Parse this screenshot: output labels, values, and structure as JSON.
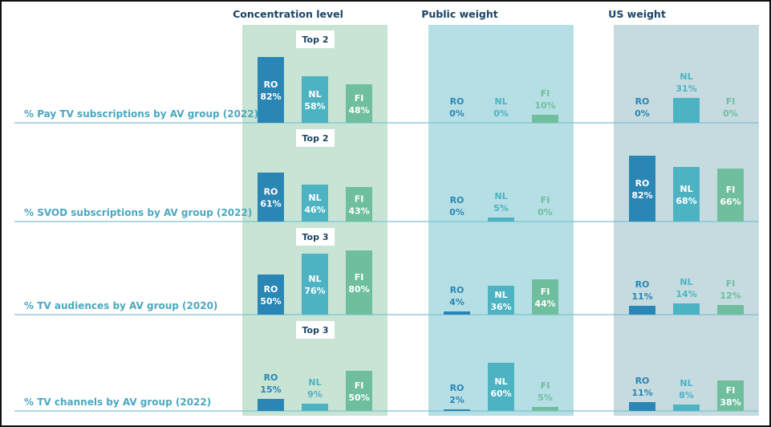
{
  "chart_data": {
    "type": "bar",
    "columns": [
      "Concentration level",
      "Public weight",
      "US weight"
    ],
    "categories": [
      "RO",
      "NL",
      "FI"
    ],
    "colors": {
      "RO": "#2a86b5",
      "NL": "#4db3c3",
      "FI": "#6fbe9e"
    },
    "panel_colors": [
      "#c8e4d4",
      "#b6dfe5",
      "#c5dbe0"
    ],
    "rows": [
      {
        "label": "% Pay TV subscriptions by AV group (2022)",
        "top_label": "Top 2",
        "panels": [
          {
            "values": [
              82,
              58,
              48
            ],
            "texts": [
              "82%",
              "58%",
              "48%"
            ]
          },
          {
            "values": [
              0,
              0,
              10
            ],
            "texts": [
              "0%",
              "0%",
              "10%"
            ]
          },
          {
            "values": [
              0,
              31,
              0
            ],
            "texts": [
              "0%",
              "31%",
              "0%"
            ]
          }
        ]
      },
      {
        "label": "% SVOD subscriptions by AV group (2022)",
        "top_label": "Top 2",
        "panels": [
          {
            "values": [
              61,
              46,
              43
            ],
            "texts": [
              "61%",
              "46%",
              "43%"
            ]
          },
          {
            "values": [
              0,
              5,
              0
            ],
            "texts": [
              "0%",
              "5%",
              "0%"
            ]
          },
          {
            "values": [
              82,
              68,
              66
            ],
            "texts": [
              "82%",
              "68%",
              "66%"
            ]
          }
        ]
      },
      {
        "label": "% TV audiences by AV group (2020)",
        "top_label": "Top 3",
        "panels": [
          {
            "values": [
              50,
              76,
              80
            ],
            "texts": [
              "50%",
              "76%",
              "80%"
            ]
          },
          {
            "values": [
              4,
              36,
              44
            ],
            "texts": [
              "4%",
              "36%",
              "44%"
            ]
          },
          {
            "values": [
              11,
              14,
              12
            ],
            "texts": [
              "11%",
              "14%",
              "12%"
            ]
          }
        ]
      },
      {
        "label": "% TV channels by AV group (2022)",
        "top_label": "Top 3",
        "panels": [
          {
            "values": [
              15,
              9,
              50
            ],
            "texts": [
              "15%",
              "9%",
              "50%"
            ]
          },
          {
            "values": [
              2,
              60,
              5
            ],
            "texts": [
              "2%",
              "60%",
              "5%"
            ]
          },
          {
            "values": [
              11,
              8,
              38
            ],
            "texts": [
              "11%",
              "8%",
              "38%"
            ]
          }
        ]
      }
    ]
  }
}
